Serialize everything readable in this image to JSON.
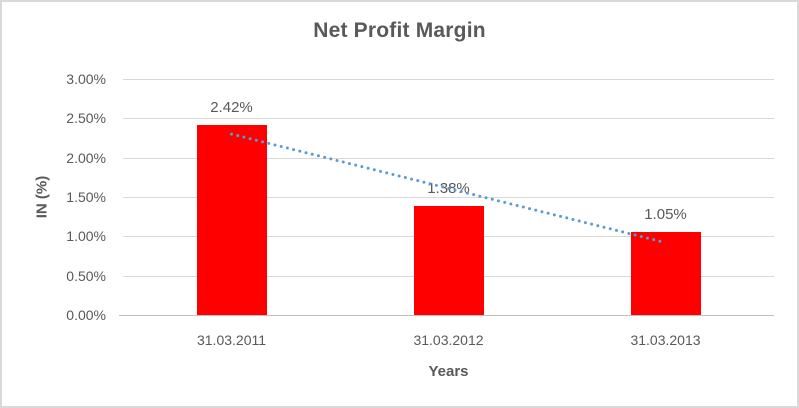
{
  "frame": {
    "border_color": "#d9d9d9",
    "background_color": "#ffffff"
  },
  "chart_data": {
    "type": "bar",
    "title": "Net Profit Margin",
    "xlabel": "Years",
    "ylabel": "IN (%)",
    "categories": [
      "31.03.2011",
      "31.03.2012",
      "31.03.2013"
    ],
    "values": [
      2.42,
      1.38,
      1.05
    ],
    "value_labels": [
      "2.42%",
      "1.38%",
      "1.05%"
    ],
    "ytick_values": [
      0,
      0.5,
      1,
      1.5,
      2,
      2.5,
      3
    ],
    "ytick_labels": [
      "0.00%",
      "0.50%",
      "1.00%",
      "1.50%",
      "2.00%",
      "2.50%",
      "3.00%"
    ],
    "ylim": [
      0,
      3
    ],
    "grid": true,
    "legend": "none",
    "bar_color": "#ff0000",
    "text_color": "#595959",
    "gridline_color": "#d9d9d9",
    "axisline_color": "#bfbfbf",
    "trendline": {
      "type": "linear",
      "style": "dotted",
      "color": "#5b9bd5",
      "fit_values": [
        2.3,
        1.61,
        0.92
      ]
    }
  }
}
